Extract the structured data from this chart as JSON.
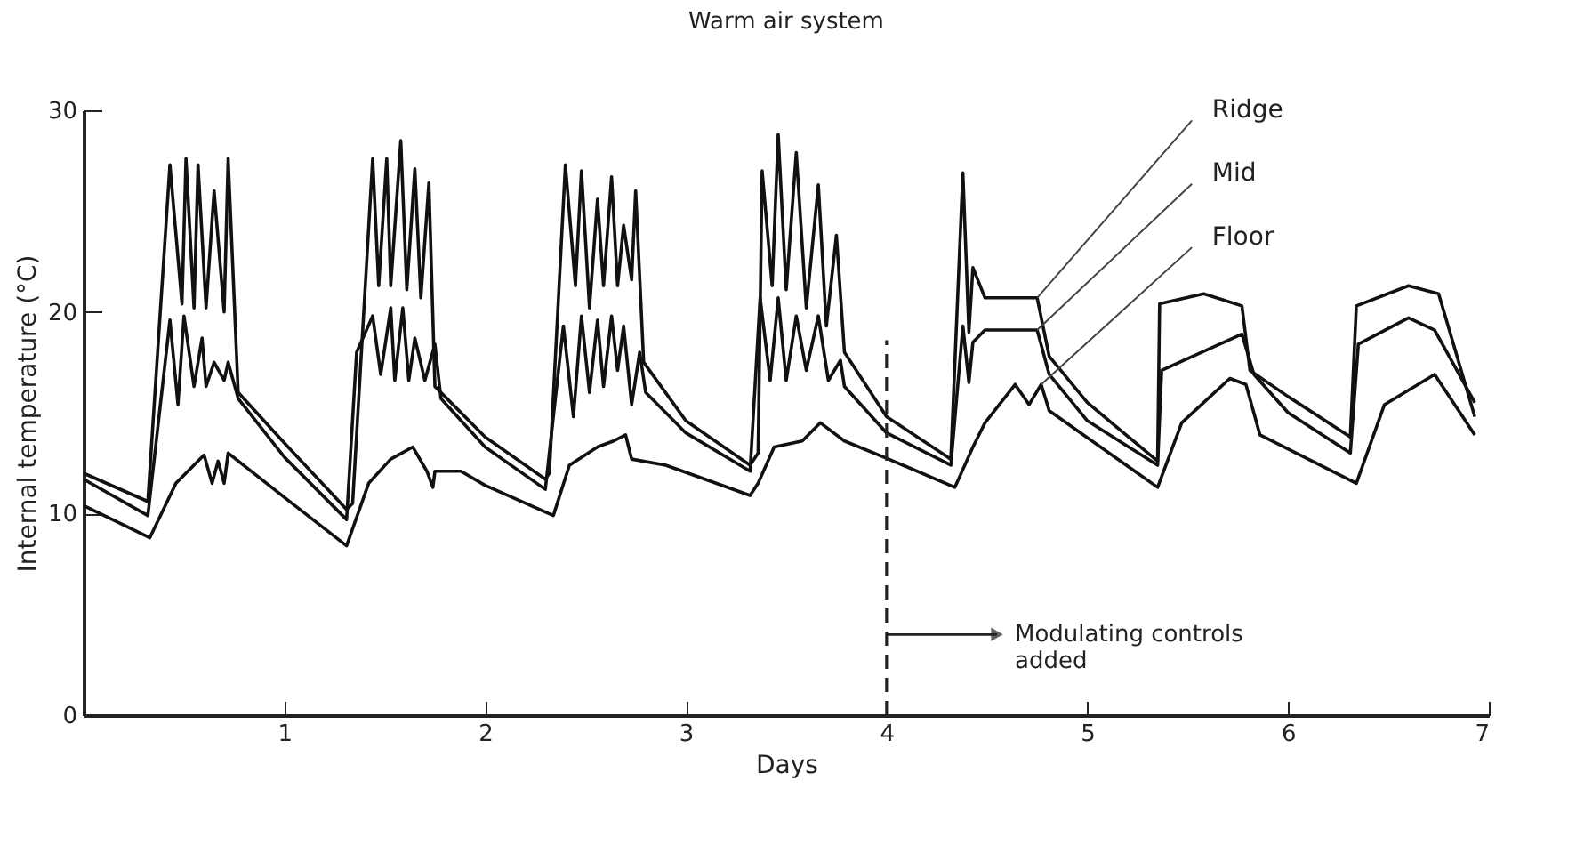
{
  "chart_data": {
    "type": "line",
    "title": "Warm air system",
    "xlabel": "Days",
    "ylabel": "Internal temperature (°C)",
    "xlim": [
      0,
      7
    ],
    "ylim": [
      0,
      30
    ],
    "xticks": [
      1,
      2,
      3,
      4,
      5,
      6,
      7
    ],
    "yticks": [
      0,
      10,
      20,
      30
    ],
    "grid": false,
    "legend": false,
    "marker": "none",
    "line_style": "solid",
    "series": [
      {
        "name": "Ridge",
        "color": "#111111",
        "x": [
          0,
          0.32,
          0.43,
          0.49,
          0.51,
          0.55,
          0.57,
          0.61,
          0.65,
          0.7,
          0.72,
          0.77,
          1.0,
          1.31,
          1.34,
          1.44,
          1.47,
          1.51,
          1.53,
          1.58,
          1.61,
          1.65,
          1.68,
          1.72,
          1.75,
          2.0,
          2.3,
          2.32,
          2.4,
          2.45,
          2.48,
          2.52,
          2.56,
          2.59,
          2.63,
          2.66,
          2.69,
          2.73,
          2.75,
          2.79,
          3.0,
          3.32,
          3.36,
          3.38,
          3.43,
          3.46,
          3.5,
          3.55,
          3.6,
          3.66,
          3.7,
          3.75,
          3.79,
          4.0,
          4.32,
          4.38,
          4.41,
          4.43,
          4.49,
          4.75,
          4.81,
          5.0,
          5.35,
          5.36,
          5.58,
          5.77,
          5.81,
          6.0,
          6.31,
          6.34,
          6.6,
          6.75,
          6.93
        ],
        "values": [
          12.0,
          10.6,
          27.3,
          20.4,
          27.6,
          20.2,
          27.3,
          20.2,
          26,
          20,
          27.6,
          16,
          13.5,
          10.2,
          10.5,
          27.6,
          21.3,
          27.6,
          21.3,
          28.5,
          21.1,
          27.1,
          20.7,
          26.4,
          16.3,
          13.8,
          11.7,
          12.0,
          27.3,
          21.3,
          27,
          20.2,
          25.6,
          21.3,
          26.7,
          21.3,
          24.3,
          21.6,
          26,
          17.5,
          14.6,
          12.4,
          13.0,
          27,
          21.3,
          28.8,
          21.1,
          27.9,
          20.2,
          26.3,
          19.3,
          23.8,
          18,
          14.8,
          12.7,
          26.9,
          19,
          22.2,
          20.7,
          20.7,
          17.8,
          15.5,
          12.6,
          20.4,
          20.9,
          20.3,
          17.1,
          15.8,
          13.8,
          20.3,
          21.3,
          20.9,
          14.8
        ]
      },
      {
        "name": "Mid",
        "color": "#111111",
        "x": [
          0,
          0.32,
          0.43,
          0.47,
          0.5,
          0.55,
          0.59,
          0.61,
          0.65,
          0.7,
          0.72,
          0.77,
          1.0,
          1.31,
          1.36,
          1.44,
          1.48,
          1.53,
          1.55,
          1.59,
          1.62,
          1.65,
          1.7,
          1.75,
          1.78,
          2.0,
          2.3,
          2.39,
          2.44,
          2.48,
          2.52,
          2.56,
          2.59,
          2.63,
          2.66,
          2.69,
          2.73,
          2.77,
          2.8,
          3.0,
          3.32,
          3.37,
          3.42,
          3.46,
          3.5,
          3.55,
          3.6,
          3.66,
          3.71,
          3.77,
          3.79,
          4.0,
          4.32,
          4.38,
          4.41,
          4.43,
          4.49,
          4.75,
          4.81,
          5.0,
          5.35,
          5.37,
          5.77,
          5.83,
          6.0,
          6.31,
          6.35,
          6.6,
          6.73,
          6.93
        ],
        "values": [
          11.7,
          9.9,
          19.6,
          15.4,
          19.8,
          16.3,
          18.7,
          16.3,
          17.5,
          16.6,
          17.5,
          15.7,
          12.8,
          9.7,
          18,
          19.8,
          16.9,
          20.2,
          16.6,
          20.2,
          16.6,
          18.7,
          16.6,
          18.4,
          15.7,
          13.3,
          11.2,
          19.3,
          14.8,
          19.8,
          16,
          19.6,
          16.3,
          19.8,
          17.1,
          19.3,
          15.4,
          18,
          16,
          14.0,
          12.1,
          20.7,
          16.6,
          20.7,
          16.6,
          19.8,
          17.1,
          19.8,
          16.6,
          17.6,
          16.3,
          14.0,
          12.4,
          19.3,
          16.5,
          18.5,
          19.1,
          19.1,
          16.9,
          14.6,
          12.4,
          17.1,
          18.9,
          16.9,
          15.0,
          13.0,
          18.4,
          19.7,
          19.1,
          15.5
        ]
      },
      {
        "name": "Floor",
        "color": "#111111",
        "x": [
          0,
          0.33,
          0.46,
          0.6,
          0.64,
          0.67,
          0.7,
          0.72,
          1.0,
          1.31,
          1.42,
          1.53,
          1.64,
          1.71,
          1.74,
          1.75,
          1.88,
          2.0,
          2.34,
          2.42,
          2.56,
          2.64,
          2.7,
          2.73,
          2.9,
          3.32,
          3.36,
          3.44,
          3.58,
          3.67,
          3.79,
          4.01,
          4.34,
          4.43,
          4.49,
          4.64,
          4.71,
          4.77,
          4.81,
          5.35,
          5.47,
          5.71,
          5.79,
          5.86,
          6.34,
          6.48,
          6.73,
          6.93
        ],
        "values": [
          10.4,
          8.8,
          11.5,
          12.9,
          11.5,
          12.6,
          11.5,
          13,
          10.8,
          8.4,
          11.5,
          12.7,
          13.3,
          12.1,
          11.3,
          12.1,
          12.1,
          11.4,
          9.9,
          12.4,
          13.3,
          13.6,
          13.9,
          12.7,
          12.4,
          10.9,
          11.5,
          13.3,
          13.6,
          14.5,
          13.6,
          12.7,
          11.3,
          13.3,
          14.5,
          16.4,
          15.4,
          16.4,
          15.1,
          11.3,
          14.5,
          16.7,
          16.4,
          13.9,
          11.5,
          15.4,
          16.9,
          13.9
        ]
      }
    ],
    "ref_lines": [
      {
        "axis": "x",
        "value": 4,
        "line_style": "dashed"
      }
    ],
    "annotations": [
      {
        "text": "Modulating controls\nadded",
        "x": 4,
        "y": 4
      }
    ]
  }
}
